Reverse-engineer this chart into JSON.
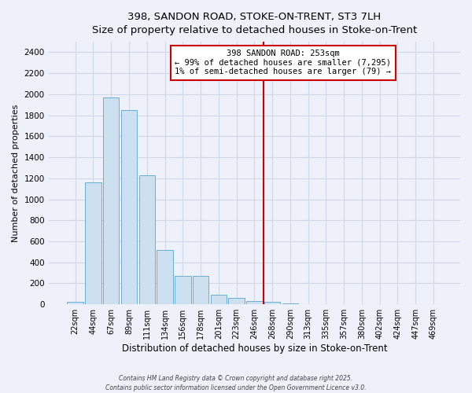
{
  "title": "398, SANDON ROAD, STOKE-ON-TRENT, ST3 7LH",
  "subtitle": "Size of property relative to detached houses in Stoke-on-Trent",
  "xlabel": "Distribution of detached houses by size in Stoke-on-Trent",
  "ylabel": "Number of detached properties",
  "bar_labels": [
    "22sqm",
    "44sqm",
    "67sqm",
    "89sqm",
    "111sqm",
    "134sqm",
    "156sqm",
    "178sqm",
    "201sqm",
    "223sqm",
    "246sqm",
    "268sqm",
    "290sqm",
    "313sqm",
    "335sqm",
    "357sqm",
    "380sqm",
    "402sqm",
    "424sqm",
    "447sqm",
    "469sqm"
  ],
  "bar_values": [
    25,
    1160,
    1970,
    1850,
    1230,
    520,
    270,
    270,
    90,
    60,
    30,
    25,
    10,
    5,
    3,
    2,
    1,
    1,
    0,
    0,
    0
  ],
  "bar_color": "#cce0f0",
  "bar_edge_color": "#6aafd4",
  "vline_x": 10.5,
  "vline_color": "#cc0000",
  "annotation_title": "398 SANDON ROAD: 253sqm",
  "annotation_line1": "← 99% of detached houses are smaller (7,295)",
  "annotation_line2": "1% of semi-detached houses are larger (79) →",
  "annotation_box_facecolor": "#ffffff",
  "annotation_border_color": "#cc0000",
  "ylim": [
    0,
    2500
  ],
  "yticks": [
    0,
    200,
    400,
    600,
    800,
    1000,
    1200,
    1400,
    1600,
    1800,
    2000,
    2200,
    2400
  ],
  "bg_color": "#eef1fa",
  "grid_color": "#d0d8e8",
  "footer_line1": "Contains HM Land Registry data © Crown copyright and database right 2025.",
  "footer_line2": "Contains public sector information licensed under the Open Government Licence v3.0."
}
